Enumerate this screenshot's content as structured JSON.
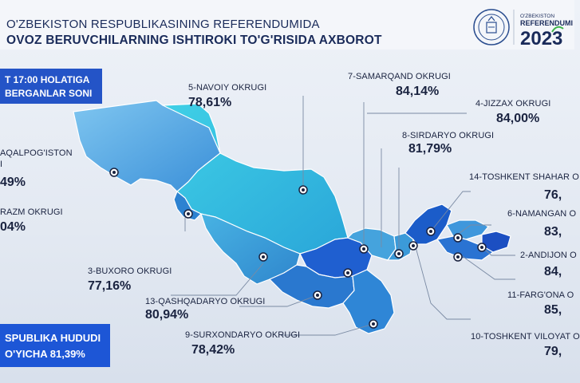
{
  "header": {
    "title_line1": "O'ZBEKISTON RESPUBLIKASINING REFERENDUMIDA",
    "title_line2": "OVOZ BERUVCHILARNING ISHTIROKI TO'G'RISIDA AXBOROT",
    "logo_text1": "O'ZBEKISTON",
    "logo_text2": "REFERENDUMI",
    "logo_year": "2023"
  },
  "time_box": {
    "line1": "T 17:00 HOLATIGA",
    "line2": "BERGANLAR SONI"
  },
  "total_box": {
    "line1": "SPUBLIKA HUDUDI",
    "line2": "O'YICHA 81,39%"
  },
  "regions": [
    {
      "name": "5-NAVOIY OKRUGI",
      "value": "78,61%"
    },
    {
      "name": "7-SAMARQAND OKRUGI",
      "value": "84,14%"
    },
    {
      "name": "4-JIZZAX OKRUGI",
      "value": "84,00%"
    },
    {
      "name": "8-SIRDARYO OKRUGI",
      "value": "81,79%"
    },
    {
      "name": "14-TOSHKENT SHAHAR O",
      "value": "76,"
    },
    {
      "name": "AQALPOG'ISTON",
      "value": "49%"
    },
    {
      "name": "I",
      "value": ""
    },
    {
      "name": "RAZM OKRUGI",
      "value": "04%"
    },
    {
      "name": "6-NAMANGAN O",
      "value": "83,"
    },
    {
      "name": "2-ANDIJON O",
      "value": "84,"
    },
    {
      "name": "3-BUXORO OKRUGI",
      "value": "77,16%"
    },
    {
      "name": "13-QASHQADARYO OKRUGI",
      "value": "80,94%"
    },
    {
      "name": "11-FARG'ONA O",
      "value": "85,"
    },
    {
      "name": "9-SURXONDARYO OKRUGI",
      "value": "78,42%"
    },
    {
      "name": "10-TOSHKENT VILOYAT O",
      "value": "79,"
    }
  ],
  "colors": {
    "accent": "#1d56d6",
    "text": "#1a2340",
    "leader": "#7a8aa3"
  }
}
